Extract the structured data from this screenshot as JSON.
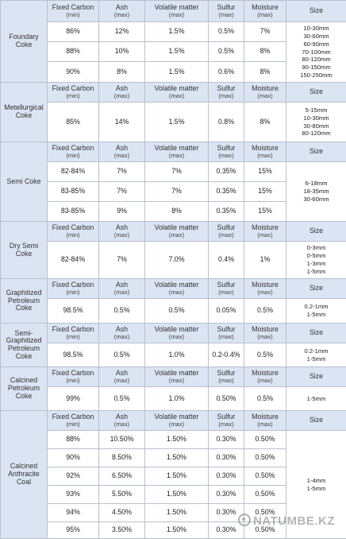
{
  "header": {
    "fixed_carbon": "Fixed Carbon",
    "fixed_carbon_sub": "(min)",
    "ash": "Ash",
    "ash_sub": "(max)",
    "volatile": "Volatile matter",
    "volatile_sub": "(max)",
    "sulfur": "Sulfur",
    "sulfur_sub": "(max)",
    "moisture": "Moisture",
    "moisture_sub": "(max)",
    "size": "Size"
  },
  "products": [
    {
      "name": "Foundary Coke",
      "rows": [
        [
          "86%",
          "12%",
          "1.5%",
          "0.5%",
          "7%"
        ],
        [
          "88%",
          "10%",
          "1.5%",
          "0.5%",
          "8%"
        ],
        [
          "90%",
          "8%",
          "1.5%",
          "0.6%",
          "8%"
        ]
      ],
      "sizes": [
        "10-30mm",
        "30-60mm",
        "60-90mm",
        "70-100mm",
        "80-120mm",
        "90-150mm",
        "150-250mm"
      ]
    },
    {
      "name": "Metellurgical Coke",
      "rows": [
        [
          "85%",
          "14%",
          "1.5%",
          "0.8%",
          "8%"
        ]
      ],
      "sizes": [
        "5-15mm",
        "10-30mm",
        "30-80mm",
        "80-120mm"
      ]
    },
    {
      "name": "Semi Coke",
      "rows": [
        [
          "82-84%",
          "7%",
          "7%",
          "0.35%",
          "15%"
        ],
        [
          "83-85%",
          "7%",
          "7%",
          "0.35%",
          "15%"
        ],
        [
          "83-85%",
          "9%",
          "8%",
          "0.35%",
          "15%"
        ]
      ],
      "sizes": [
        "6-18mm",
        "18-35mm",
        "30-60mm"
      ]
    },
    {
      "name": "Dry Semi Coke",
      "rows": [
        [
          "82-84%",
          "7%",
          "7.0%",
          "0.4%",
          "1%"
        ]
      ],
      "sizes": [
        "0-3mm",
        "0-5mm",
        "1-3mm",
        "1-5mm"
      ]
    },
    {
      "name": "Graphitized Petroleum Coke",
      "rows": [
        [
          "98.5%",
          "0.5%",
          "0.5%",
          "0.05%",
          "0.5%"
        ]
      ],
      "sizes": [
        "0.2-1mm",
        "1-5mm"
      ]
    },
    {
      "name": "Semi-Graphitized Petroleum Coke",
      "rows": [
        [
          "98.5%",
          "0.5%",
          "1.0%",
          "0.2-0.4%",
          "0.5%"
        ]
      ],
      "sizes": [
        "0.2-1mm",
        "1-5mm"
      ]
    },
    {
      "name": "Calcined Petroleum Coke",
      "rows": [
        [
          "99%",
          "0.5%",
          "1.0%",
          "0.50%",
          "0.5%"
        ]
      ],
      "sizes": [
        "1-5mm"
      ]
    },
    {
      "name": "Calcined Anthracite Coal",
      "rows": [
        [
          "88%",
          "10.50%",
          "1.50%",
          "0.30%",
          "0.50%"
        ],
        [
          "90%",
          "8.50%",
          "1.50%",
          "0.30%",
          "0.50%"
        ],
        [
          "92%",
          "6.50%",
          "1.50%",
          "0.30%",
          "0.50%"
        ],
        [
          "93%",
          "5.50%",
          "1.50%",
          "0.30%",
          "0.50%"
        ],
        [
          "94%",
          "4.50%",
          "1.50%",
          "0.30%",
          "0.50%"
        ],
        [
          "95%",
          "3.50%",
          "1.50%",
          "0.30%",
          "0.50%"
        ]
      ],
      "sizes": [
        "1-4mm",
        "1-5mm"
      ]
    }
  ],
  "watermark": "NATUMBE.KZ"
}
